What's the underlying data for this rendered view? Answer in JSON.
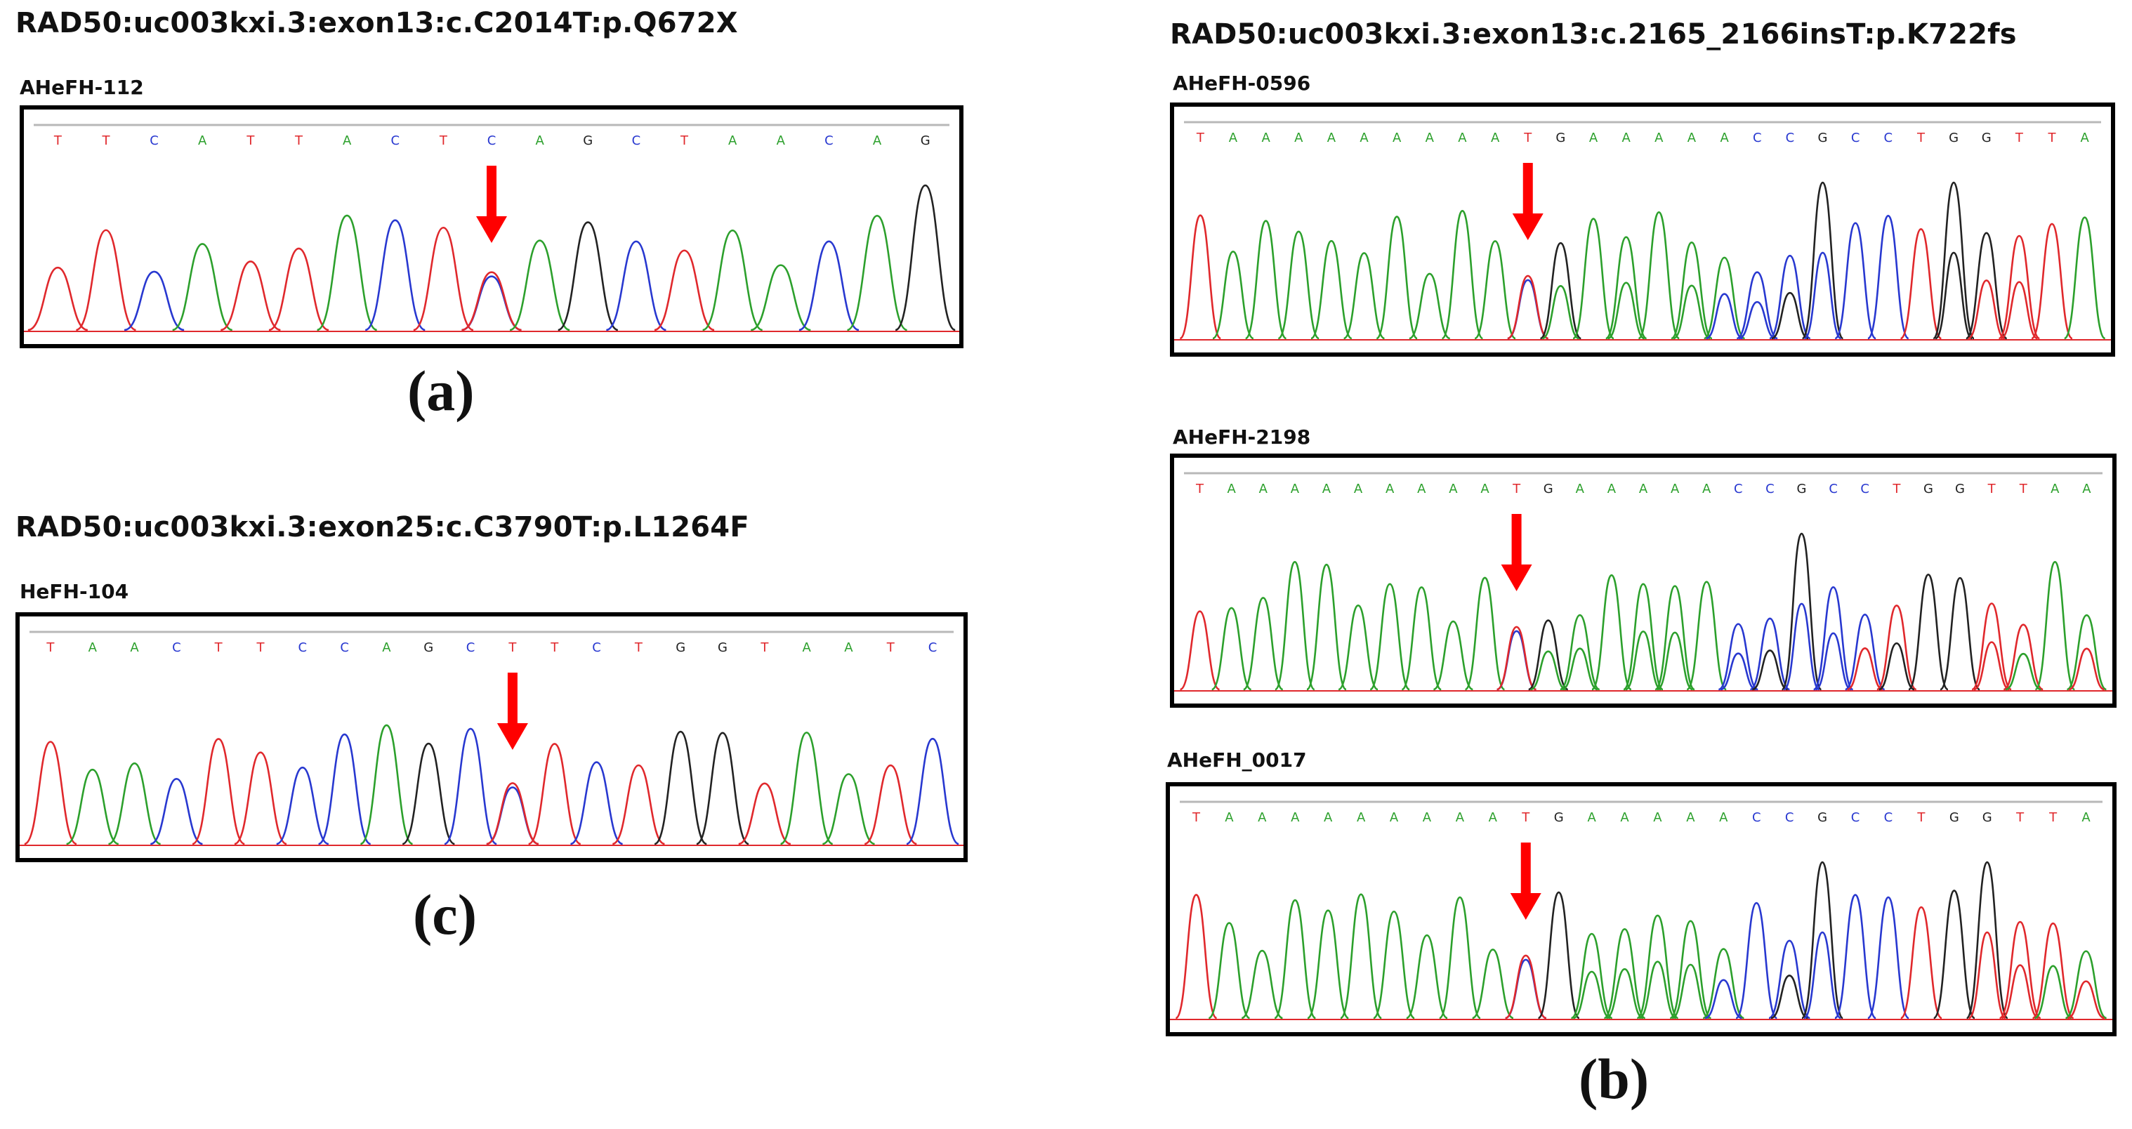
{
  "colors": {
    "A": "#2ca02c",
    "C": "#2838d0",
    "G": "#222222",
    "T": "#e0282c",
    "arrow": "#ff0000",
    "baseline": "#e0282c",
    "rule": "#b8b8b8"
  },
  "panels": {
    "a": {
      "title": "RAD50:uc003kxi.3:exon13:c.C2014T:p.Q672X",
      "letter": "(a)",
      "traces": [
        {
          "sample": "AHeFH-112",
          "sequence": "TTCATTACTCAGCTAACAG",
          "mutation_index": 9
        }
      ]
    },
    "b": {
      "title": "RAD50:uc003kxi.3:exon13:c.2165_2166insT:p.K722fs",
      "letter": "(b)",
      "traces": [
        {
          "sample": "AHeFH-0596",
          "sequence": "TAAAAAAAAATGAAAAACCGCCTGGTTA",
          "mutation_index": 10
        },
        {
          "sample": "AHeFH-2198",
          "sequence": "TAAAAAAAAATGAAAAACCGCCTGGTTAA",
          "mutation_index": 10
        },
        {
          "sample": "AHeFH_0017",
          "sequence": "TAAAAAAAAATGAAAAACCGCCTGGTTA",
          "mutation_index": 10
        }
      ]
    },
    "c": {
      "title": "RAD50:uc003kxi.3:exon25:c.C3790T:p.L1264F",
      "letter": "(c)",
      "traces": [
        {
          "sample": "HeFH-104",
          "sequence": "TAACTTCCAGCTTCTGGTAATC",
          "mutation_index": 11
        }
      ]
    }
  }
}
